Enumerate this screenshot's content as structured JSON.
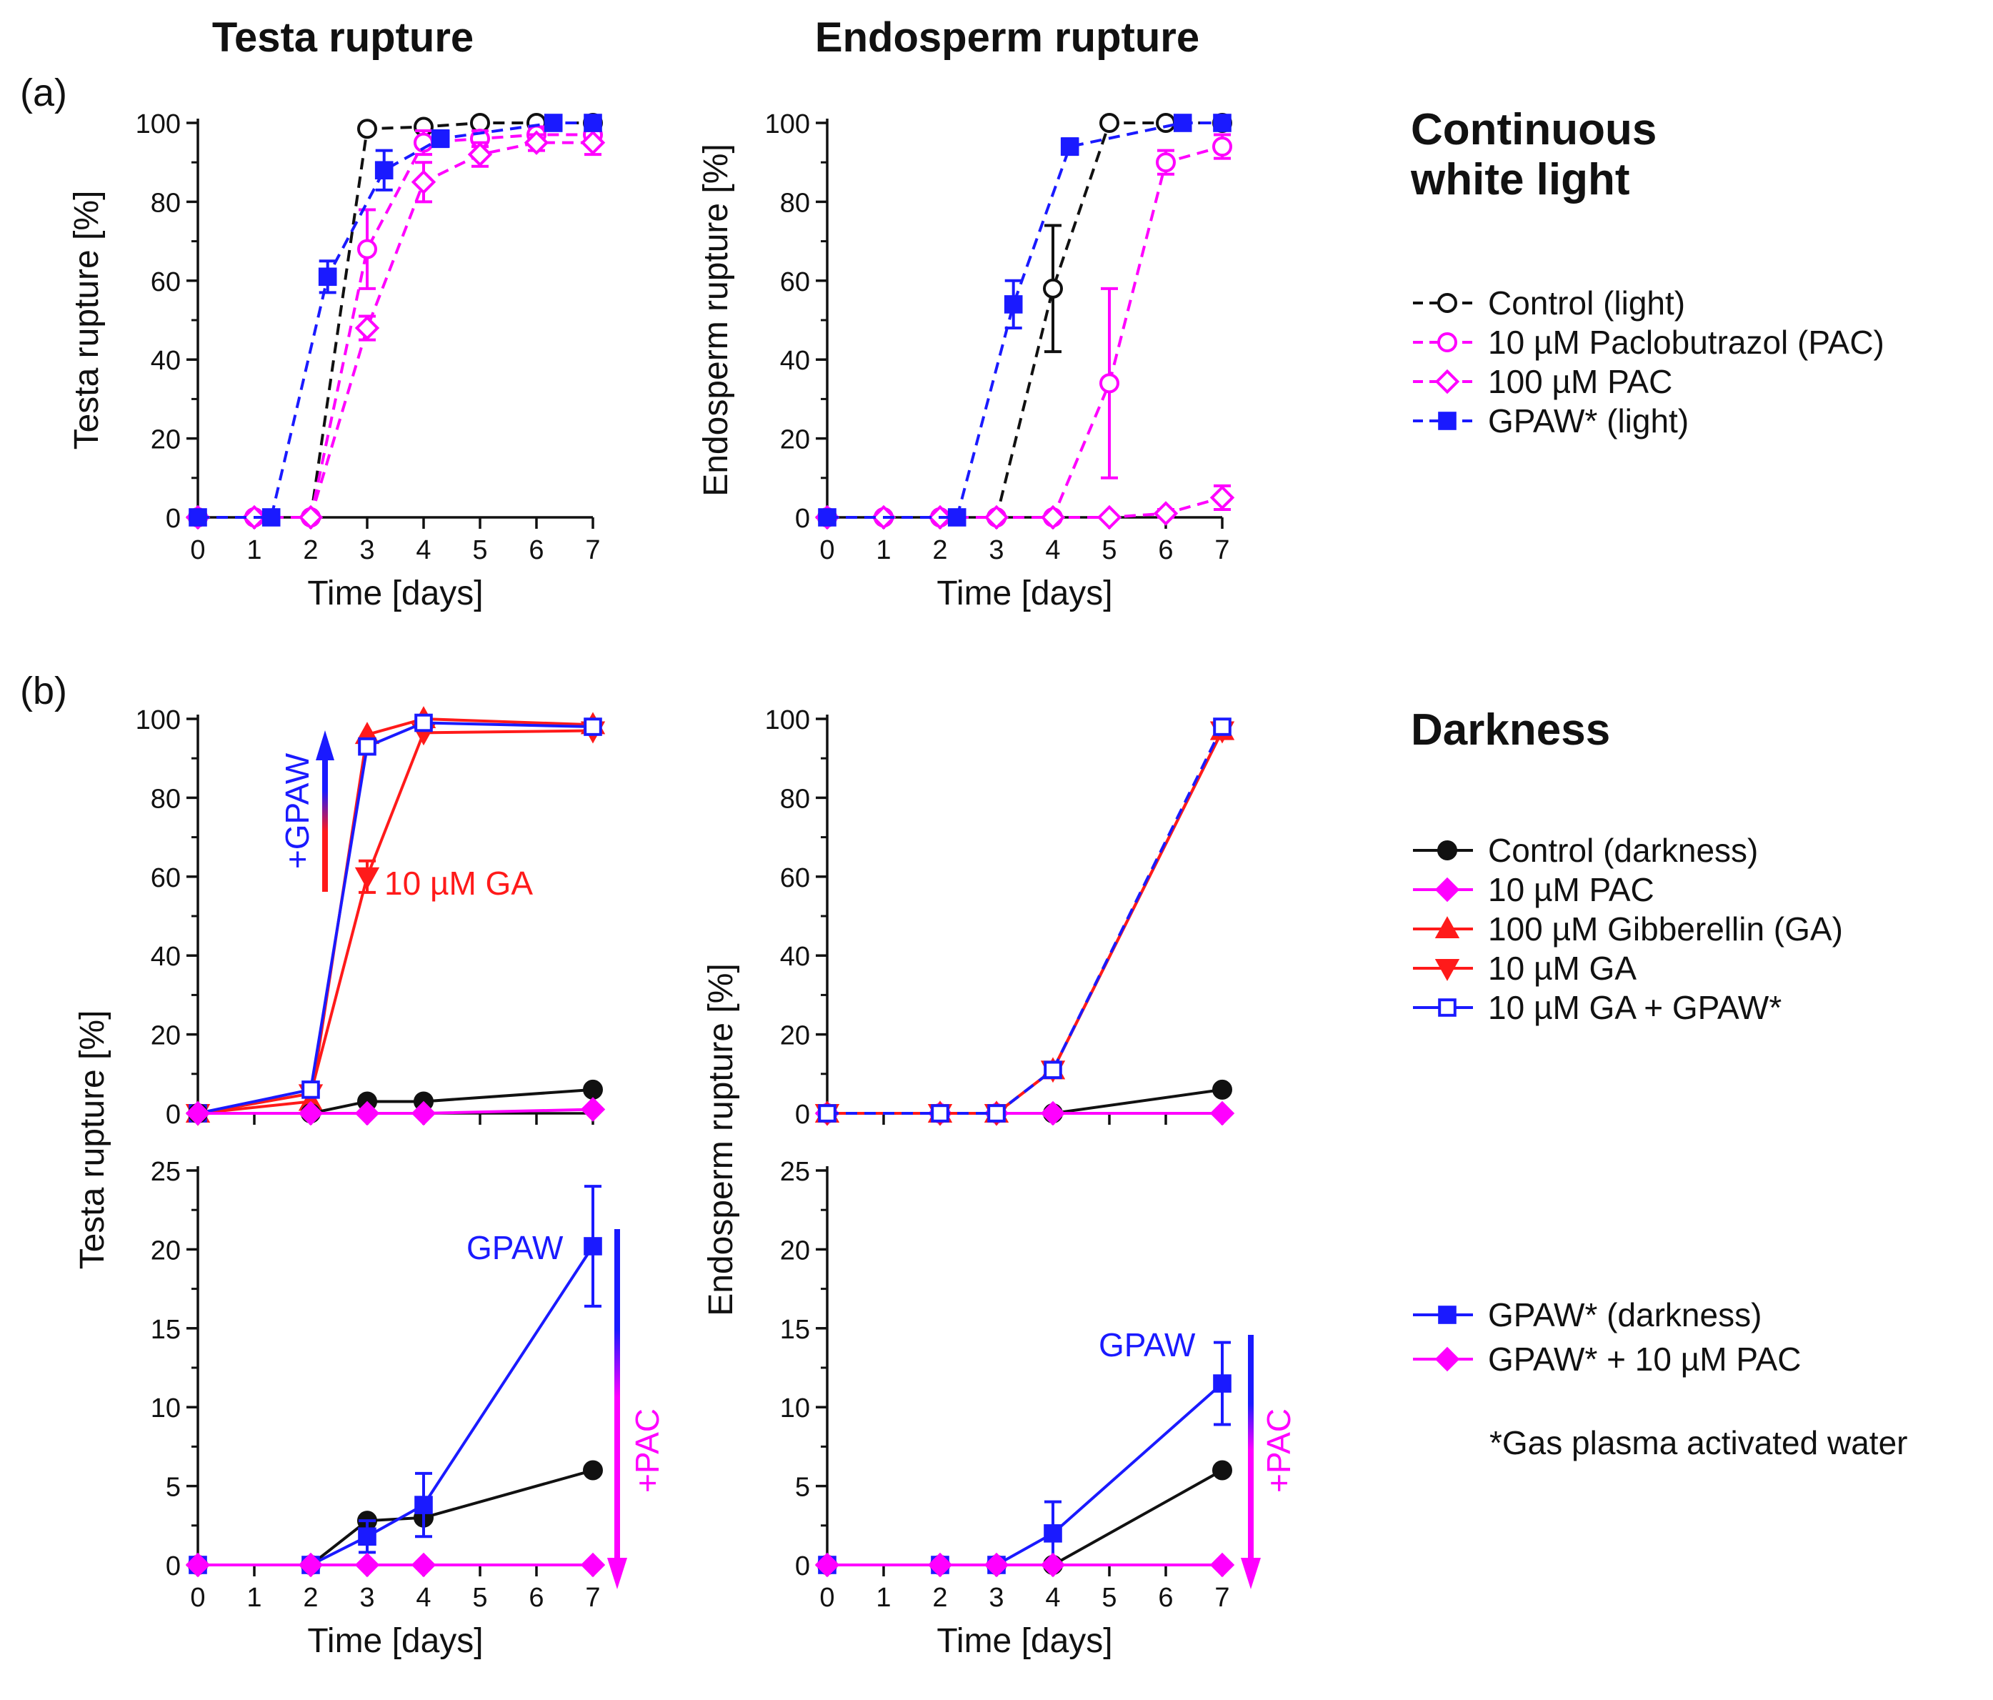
{
  "figure": {
    "column_titles": [
      "Testa rupture",
      "Endosperm rupture"
    ],
    "panel_letters": [
      "(a)",
      "(b)"
    ],
    "condition_titles": {
      "light_line1": "Continuous",
      "light_line2": "white light",
      "dark": "Darkness"
    },
    "footnote": "*Gas plasma activated water"
  },
  "colors": {
    "black": "#111111",
    "magenta": "#ff00ff",
    "red": "#ff1a1a",
    "blue": "#1a1aff"
  },
  "legends": {
    "light": [
      {
        "label": "Control (light)",
        "color": "#111111",
        "marker": "circle-open",
        "dash": true
      },
      {
        "label": "10 µM Paclobutrazol (PAC)",
        "color": "#ff00ff",
        "marker": "circle-open",
        "dash": true
      },
      {
        "label": "100 µM PAC",
        "color": "#ff00ff",
        "marker": "diamond-open",
        "dash": true
      },
      {
        "label": "GPAW* (light)",
        "color": "#1a1aff",
        "marker": "square",
        "dash": true
      }
    ],
    "dark_top": [
      {
        "label": "Control (darkness)",
        "color": "#111111",
        "marker": "circle",
        "dash": false
      },
      {
        "label": "10 µM PAC",
        "color": "#ff00ff",
        "marker": "diamond",
        "dash": false
      },
      {
        "label": "100 µM Gibberellin (GA)",
        "color": "#ff1a1a",
        "marker": "triangle-up",
        "dash": false
      },
      {
        "label": "10 µM GA",
        "color": "#ff1a1a",
        "marker": "triangle-down",
        "dash": false
      },
      {
        "label": "10 µM GA + GPAW*",
        "color": "#1a1aff",
        "marker": "square-open",
        "dash": false
      }
    ],
    "dark_bottom": [
      {
        "label": "GPAW* (darkness)",
        "color": "#1a1aff",
        "marker": "square",
        "dash": false
      },
      {
        "label": "GPAW* + 10 µM PAC",
        "color": "#ff00ff",
        "marker": "diamond",
        "dash": false
      }
    ]
  },
  "chart_data": [
    {
      "id": "a_testa",
      "type": "line",
      "xlabel": "Time [days]",
      "ylabel": "Testa rupture [%]",
      "xlim": [
        0,
        7
      ],
      "ylim": [
        0,
        100
      ],
      "xticks": [
        0,
        1,
        2,
        3,
        4,
        5,
        6,
        7
      ],
      "xtick_labels": [
        "0",
        "1",
        "2",
        "3",
        "4",
        "5",
        "6",
        "7"
      ],
      "yticks": [
        0,
        20,
        40,
        60,
        80,
        100
      ],
      "ytick_labels": [
        "0",
        "20",
        "40",
        "60",
        "80",
        "100"
      ],
      "series": [
        {
          "name": "Control (light)",
          "color": "#111111",
          "marker": "circle-open",
          "dash": true,
          "x": [
            0,
            1,
            2,
            3,
            4,
            5,
            6,
            7
          ],
          "y": [
            0,
            0,
            0,
            98.5,
            99,
            100,
            100,
            100
          ],
          "err": [
            0,
            0,
            0,
            0,
            0,
            0,
            0,
            0
          ]
        },
        {
          "name": "10 µM Paclobutrazol (PAC)",
          "color": "#ff00ff",
          "marker": "circle-open",
          "dash": true,
          "x": [
            0,
            1,
            2,
            3,
            4,
            5,
            6,
            7
          ],
          "y": [
            0,
            0,
            0,
            68,
            95,
            96,
            97,
            97
          ],
          "err": [
            0,
            0,
            0,
            10,
            3,
            2,
            2,
            2
          ]
        },
        {
          "name": "100 µM PAC",
          "color": "#ff00ff",
          "marker": "diamond-open",
          "dash": true,
          "x": [
            0,
            1,
            2,
            3,
            4,
            5,
            6,
            7
          ],
          "y": [
            0,
            0,
            0,
            48,
            85,
            92,
            95,
            95
          ],
          "err": [
            0,
            0,
            0,
            3,
            5,
            3,
            2,
            3
          ]
        },
        {
          "name": "GPAW* (light)",
          "color": "#1a1aff",
          "marker": "square",
          "dash": true,
          "x": [
            0,
            1.3,
            2.3,
            3.3,
            4.3,
            6.3,
            7
          ],
          "y": [
            0,
            0,
            61,
            88,
            96,
            100,
            100
          ],
          "err": [
            0,
            0,
            4,
            5,
            2,
            0,
            0
          ]
        }
      ]
    },
    {
      "id": "a_endo",
      "type": "line",
      "xlabel": "Time [days]",
      "ylabel": "Endosperm rupture [%]",
      "xlim": [
        0,
        7
      ],
      "ylim": [
        0,
        100
      ],
      "xticks": [
        0,
        1,
        2,
        3,
        4,
        5,
        6,
        7
      ],
      "xtick_labels": [
        "0",
        "1",
        "2",
        "3",
        "4",
        "5",
        "6",
        "7"
      ],
      "yticks": [
        0,
        20,
        40,
        60,
        80,
        100
      ],
      "ytick_labels": [
        "0",
        "20",
        "40",
        "60",
        "80",
        "100"
      ],
      "series": [
        {
          "name": "Control (light)",
          "color": "#111111",
          "marker": "circle-open",
          "dash": true,
          "x": [
            0,
            1,
            2,
            3,
            4,
            5,
            6,
            7
          ],
          "y": [
            0,
            0,
            0,
            0,
            58,
            100,
            100,
            100
          ],
          "err": [
            0,
            0,
            0,
            0,
            16,
            0,
            0,
            0
          ]
        },
        {
          "name": "10 µM Paclobutrazol (PAC)",
          "color": "#ff00ff",
          "marker": "circle-open",
          "dash": true,
          "x": [
            0,
            1,
            2,
            3,
            4,
            5,
            6,
            7
          ],
          "y": [
            0,
            0,
            0,
            0,
            0,
            34,
            90,
            94
          ],
          "err": [
            0,
            0,
            0,
            0,
            0,
            24,
            3,
            3
          ]
        },
        {
          "name": "100 µM PAC",
          "color": "#ff00ff",
          "marker": "diamond-open",
          "dash": true,
          "x": [
            0,
            1,
            2,
            3,
            4,
            5,
            6,
            7
          ],
          "y": [
            0,
            0,
            0,
            0,
            0,
            0,
            1,
            5
          ],
          "err": [
            0,
            0,
            0,
            0,
            0,
            0,
            1,
            3
          ]
        },
        {
          "name": "GPAW* (light)",
          "color": "#1a1aff",
          "marker": "square",
          "dash": true,
          "x": [
            0,
            2.3,
            3.3,
            4.3,
            6.3,
            7
          ],
          "y": [
            0,
            0,
            54,
            94,
            100,
            100
          ],
          "err": [
            0,
            0,
            6,
            2,
            0,
            0
          ]
        }
      ]
    },
    {
      "id": "b_testa_top",
      "type": "line",
      "xlabel": "",
      "ylabel": "",
      "xlim": [
        0,
        7
      ],
      "ylim": [
        0,
        100
      ],
      "xticks": [
        0,
        1,
        2,
        3,
        4,
        5,
        6,
        7
      ],
      "xtick_labels": [],
      "yticks": [
        0,
        20,
        40,
        60,
        80,
        100
      ],
      "ytick_labels": [
        "0",
        "20",
        "40",
        "60",
        "80",
        "100"
      ],
      "series": [
        {
          "name": "100 µM Gibberellin (GA)",
          "color": "#ff1a1a",
          "marker": "triangle-up",
          "dash": false,
          "x": [
            0,
            2,
            3,
            4,
            7
          ],
          "y": [
            0,
            3,
            96,
            100,
            98.5
          ],
          "err": [
            0,
            0,
            0,
            0,
            0
          ]
        },
        {
          "name": "10 µM GA",
          "color": "#ff1a1a",
          "marker": "triangle-down",
          "dash": false,
          "x": [
            0,
            2,
            3,
            4,
            7
          ],
          "y": [
            0,
            5,
            60,
            96.5,
            97
          ],
          "err": [
            0,
            0,
            4,
            0,
            0
          ]
        },
        {
          "name": "10 µM GA + GPAW*",
          "color": "#1a1aff",
          "marker": "square-open",
          "dash": false,
          "x": [
            0,
            2,
            3,
            4,
            7
          ],
          "y": [
            0,
            6,
            93,
            99,
            98
          ],
          "err": [
            0,
            0,
            0,
            0,
            0
          ]
        },
        {
          "name": "Control (darkness)",
          "color": "#111111",
          "marker": "circle",
          "dash": false,
          "x": [
            0,
            2,
            3,
            4,
            7
          ],
          "y": [
            0,
            0,
            3,
            3,
            6
          ],
          "err": [
            0,
            0,
            0,
            0,
            0
          ]
        },
        {
          "name": "10 µM PAC",
          "color": "#ff00ff",
          "marker": "diamond",
          "dash": false,
          "x": [
            0,
            2,
            3,
            4,
            7
          ],
          "y": [
            0,
            0,
            0,
            0,
            1
          ],
          "err": [
            0,
            0,
            0,
            0,
            0
          ]
        }
      ],
      "annotations": [
        {
          "text": "+GPAW"
        },
        {
          "text": "10 µM GA"
        }
      ]
    },
    {
      "id": "b_endo_top",
      "type": "line",
      "xlabel": "",
      "ylabel": "",
      "xlim": [
        0,
        7
      ],
      "ylim": [
        0,
        100
      ],
      "xticks": [
        0,
        1,
        2,
        3,
        4,
        5,
        6,
        7
      ],
      "xtick_labels": [],
      "yticks": [
        0,
        20,
        40,
        60,
        80,
        100
      ],
      "ytick_labels": [
        "0",
        "20",
        "40",
        "60",
        "80",
        "100"
      ],
      "series": [
        {
          "name": "Control (darkness)",
          "color": "#111111",
          "marker": "circle",
          "dash": false,
          "x": [
            0,
            2,
            3,
            4,
            7
          ],
          "y": [
            0,
            0,
            0,
            0,
            6
          ],
          "err": [
            0,
            0,
            0,
            0,
            0
          ]
        },
        {
          "name": "10 µM PAC",
          "color": "#ff00ff",
          "marker": "diamond",
          "dash": false,
          "x": [
            0,
            2,
            3,
            4,
            7
          ],
          "y": [
            0,
            0,
            0,
            0,
            0
          ],
          "err": [
            0,
            0,
            0,
            0,
            0
          ]
        },
        {
          "name": "100 µM Gibberellin (GA)",
          "color": "#ff1a1a",
          "marker": "triangle-up",
          "dash": false,
          "x": [
            0,
            2,
            3,
            4,
            7
          ],
          "y": [
            0,
            0,
            0,
            11,
            97
          ],
          "err": [
            0,
            0,
            0,
            0,
            0
          ]
        },
        {
          "name": "10 µM GA",
          "color": "#ff1a1a",
          "marker": "triangle-down",
          "dash": false,
          "x": [
            0,
            2,
            3,
            4,
            7
          ],
          "y": [
            0,
            0,
            0,
            11,
            97
          ],
          "err": [
            0,
            0,
            0,
            0,
            0
          ]
        },
        {
          "name": "10 µM GA + GPAW*",
          "color": "#1a1aff",
          "marker": "square-open",
          "dash": true,
          "x": [
            0,
            2,
            3,
            4,
            7
          ],
          "y": [
            0,
            0,
            0,
            11,
            98
          ],
          "err": [
            0,
            0,
            0,
            0,
            0
          ]
        }
      ]
    },
    {
      "id": "b_testa_bottom",
      "type": "line",
      "xlabel": "Time [days]",
      "ylabel": "Testa rupture [%]",
      "xlim": [
        0,
        7
      ],
      "ylim": [
        0,
        25
      ],
      "xticks": [
        0,
        1,
        2,
        3,
        4,
        5,
        6,
        7
      ],
      "xtick_labels": [
        "0",
        "1",
        "2",
        "3",
        "4",
        "5",
        "6",
        "7"
      ],
      "yticks": [
        0,
        5,
        10,
        15,
        20,
        25
      ],
      "ytick_labels": [
        "0",
        "5",
        "10",
        "15",
        "20",
        "25"
      ],
      "series": [
        {
          "name": "Control (darkness)",
          "color": "#111111",
          "marker": "circle",
          "dash": false,
          "x": [
            0,
            2,
            3,
            4,
            7
          ],
          "y": [
            0,
            0,
            2.8,
            3,
            6
          ],
          "err": [
            0,
            0,
            0,
            0,
            0
          ]
        },
        {
          "name": "GPAW* (darkness)",
          "color": "#1a1aff",
          "marker": "square",
          "dash": false,
          "x": [
            0,
            2,
            3,
            4,
            7
          ],
          "y": [
            0,
            0,
            1.8,
            3.8,
            20.2
          ],
          "err": [
            0,
            0,
            1,
            2,
            3.8
          ]
        },
        {
          "name": "GPAW* + 10 µM PAC",
          "color": "#ff00ff",
          "marker": "diamond",
          "dash": false,
          "x": [
            0,
            2,
            3,
            4,
            7
          ],
          "y": [
            0,
            0,
            0,
            0,
            0
          ],
          "err": [
            0,
            0,
            0,
            0,
            0
          ]
        }
      ],
      "annotations": [
        {
          "text": "GPAW"
        },
        {
          "text": "+PAC"
        }
      ]
    },
    {
      "id": "b_endo_bottom",
      "type": "line",
      "xlabel": "Time [days]",
      "ylabel": "Endosperm rupture [%]",
      "xlim": [
        0,
        7
      ],
      "ylim": [
        0,
        25
      ],
      "xticks": [
        0,
        1,
        2,
        3,
        4,
        5,
        6,
        7
      ],
      "xtick_labels": [
        "0",
        "1",
        "2",
        "3",
        "4",
        "5",
        "6",
        "7"
      ],
      "yticks": [
        0,
        5,
        10,
        15,
        20,
        25
      ],
      "ytick_labels": [
        "0",
        "5",
        "10",
        "15",
        "20",
        "25"
      ],
      "series": [
        {
          "name": "Control (darkness)",
          "color": "#111111",
          "marker": "circle",
          "dash": false,
          "x": [
            0,
            2,
            3,
            4,
            7
          ],
          "y": [
            0,
            0,
            0,
            0,
            6
          ],
          "err": [
            0,
            0,
            0,
            0,
            0
          ]
        },
        {
          "name": "GPAW* (darkness)",
          "color": "#1a1aff",
          "marker": "square",
          "dash": false,
          "x": [
            0,
            2,
            3,
            4,
            7
          ],
          "y": [
            0,
            0,
            0,
            2,
            11.5
          ],
          "err": [
            0,
            0,
            0,
            2,
            2.6
          ]
        },
        {
          "name": "GPAW* + 10 µM PAC",
          "color": "#ff00ff",
          "marker": "diamond",
          "dash": false,
          "x": [
            0,
            2,
            3,
            4,
            7
          ],
          "y": [
            0,
            0,
            0,
            0,
            0
          ],
          "err": [
            0,
            0,
            0,
            0,
            0
          ]
        }
      ],
      "annotations": [
        {
          "text": "GPAW"
        },
        {
          "text": "+PAC"
        }
      ]
    }
  ]
}
